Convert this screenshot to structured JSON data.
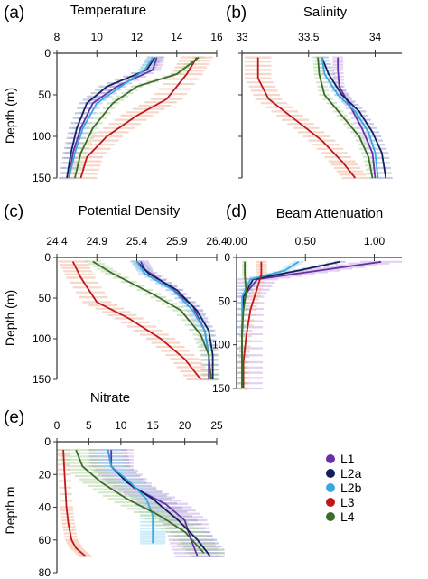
{
  "colors": {
    "L1": "#6a2fa8",
    "L2a": "#14205e",
    "L2b": "#3aa8e0",
    "L3": "#c0171c",
    "L4": "#3c6b2a"
  },
  "shade_colors": {
    "L1": "#c9aee6",
    "L2a": "#9aa4cc",
    "L2b": "#a8dcf2",
    "L3": "#f2b8a0",
    "L4": "#b5d6a0"
  },
  "legend": [
    "L1",
    "L2a",
    "L2b",
    "L3",
    "L4"
  ],
  "chart_data": [
    {
      "type": "line",
      "panel": "a",
      "letter": "(a)",
      "title": "Temperature",
      "ylabel": "Depth (m)",
      "xlim": [
        8,
        16
      ],
      "ylim": [
        0,
        150
      ],
      "xticks": [
        8,
        10,
        12,
        14,
        16
      ],
      "yticks": [
        0,
        50,
        100,
        150
      ],
      "show_ylabel_ticks": true,
      "series": [
        {
          "name": "L1",
          "x": [
            13.0,
            12.8,
            11.0,
            9.8,
            9.2,
            8.8,
            8.6
          ],
          "y": [
            5,
            20,
            40,
            60,
            90,
            120,
            150
          ]
        },
        {
          "name": "L2a",
          "x": [
            12.9,
            12.5,
            10.5,
            9.5,
            9.0,
            8.7,
            8.5
          ],
          "y": [
            5,
            20,
            40,
            60,
            90,
            120,
            150
          ]
        },
        {
          "name": "L2b",
          "x": [
            12.8,
            12.4,
            11.2,
            10.0,
            9.3,
            8.9,
            8.6
          ],
          "y": [
            5,
            20,
            40,
            60,
            90,
            120,
            150
          ]
        },
        {
          "name": "L3",
          "x": [
            15.0,
            14.5,
            13.5,
            12.0,
            10.5,
            9.5,
            9.2
          ],
          "y": [
            5,
            25,
            55,
            75,
            100,
            125,
            150
          ]
        },
        {
          "name": "L4",
          "x": [
            15.1,
            14.0,
            12.0,
            10.8,
            9.8,
            9.2,
            8.9
          ],
          "y": [
            5,
            25,
            40,
            60,
            90,
            120,
            150
          ]
        }
      ],
      "spread": [
        0.4,
        0.4,
        0.3,
        0.8,
        0.3
      ]
    },
    {
      "type": "line",
      "panel": "b",
      "letter": "(b)",
      "title": "Salinity",
      "xlim": [
        33,
        34.2
      ],
      "ylim": [
        0,
        150
      ],
      "xticks": [
        33,
        33.5,
        34
      ],
      "xtick_labels": [
        "33",
        "33.5",
        "34"
      ],
      "yticks": [
        0,
        50,
        100,
        150
      ],
      "show_ylabel_ticks": false,
      "series": [
        {
          "name": "L1",
          "x": [
            33.72,
            33.72,
            33.73,
            33.8,
            33.9,
            33.98,
            34.0
          ],
          "y": [
            5,
            20,
            40,
            60,
            90,
            120,
            150
          ]
        },
        {
          "name": "L2a",
          "x": [
            33.6,
            33.65,
            33.75,
            33.88,
            33.98,
            34.05,
            34.08
          ],
          "y": [
            5,
            25,
            50,
            70,
            95,
            120,
            150
          ]
        },
        {
          "name": "L2b",
          "x": [
            33.6,
            33.62,
            33.72,
            33.85,
            33.95,
            34.0,
            34.02
          ],
          "y": [
            5,
            25,
            50,
            70,
            95,
            120,
            150
          ]
        },
        {
          "name": "L3",
          "x": [
            33.12,
            33.12,
            33.2,
            33.4,
            33.6,
            33.75,
            33.85
          ],
          "y": [
            5,
            30,
            55,
            80,
            105,
            130,
            150
          ]
        },
        {
          "name": "L4",
          "x": [
            33.57,
            33.58,
            33.62,
            33.75,
            33.88,
            33.95,
            33.98
          ],
          "y": [
            5,
            25,
            50,
            75,
            100,
            125,
            150
          ]
        }
      ],
      "spread": [
        0.04,
        0.05,
        0.03,
        0.1,
        0.04
      ]
    },
    {
      "type": "line",
      "panel": "c",
      "letter": "(c)",
      "title": "Potential Density",
      "ylabel": "Depth (m)",
      "xlim": [
        24.4,
        26.4
      ],
      "ylim": [
        0,
        150
      ],
      "xticks": [
        24.4,
        24.9,
        25.4,
        25.9,
        26.4
      ],
      "xtick_labels": [
        "24.4",
        "24.9",
        "25.4",
        "25.9",
        "26.4"
      ],
      "yticks": [
        0,
        50,
        100,
        150
      ],
      "show_ylabel_ticks": true,
      "series": [
        {
          "name": "L1",
          "x": [
            25.45,
            25.5,
            25.8,
            26.1,
            26.25,
            26.3,
            26.3
          ],
          "y": [
            5,
            15,
            35,
            60,
            90,
            120,
            150
          ]
        },
        {
          "name": "L2a",
          "x": [
            25.4,
            25.55,
            25.9,
            26.15,
            26.3,
            26.35,
            26.35
          ],
          "y": [
            5,
            20,
            40,
            65,
            90,
            120,
            150
          ]
        },
        {
          "name": "L2b",
          "x": [
            25.4,
            25.5,
            25.85,
            26.1,
            26.25,
            26.3,
            26.32
          ],
          "y": [
            5,
            20,
            40,
            65,
            90,
            120,
            150
          ]
        },
        {
          "name": "L3",
          "x": [
            24.6,
            24.7,
            24.9,
            25.3,
            25.7,
            26.0,
            26.2
          ],
          "y": [
            5,
            25,
            55,
            75,
            100,
            125,
            150
          ]
        },
        {
          "name": "L4",
          "x": [
            24.85,
            25.1,
            25.6,
            25.95,
            26.2,
            26.3,
            26.33
          ],
          "y": [
            5,
            20,
            45,
            65,
            95,
            120,
            150
          ]
        }
      ],
      "spread": [
        0.1,
        0.08,
        0.08,
        0.18,
        0.1
      ]
    },
    {
      "type": "line",
      "panel": "d",
      "letter": "(d)",
      "title": "Beam Attenuation",
      "xlim": [
        0,
        1.2
      ],
      "ylim": [
        0,
        150
      ],
      "xticks": [
        0,
        0.5,
        1.0
      ],
      "xtick_labels": [
        "0.00",
        "0.50",
        "1.00"
      ],
      "yticks": [
        0,
        50,
        100,
        150
      ],
      "show_ylabel_ticks": true,
      "series": [
        {
          "name": "L1",
          "x": [
            1.05,
            0.6,
            0.15,
            0.05,
            0.04,
            0.04,
            0.04
          ],
          "y": [
            5,
            15,
            25,
            45,
            80,
            120,
            150
          ]
        },
        {
          "name": "L2a",
          "x": [
            0.75,
            0.45,
            0.12,
            0.05,
            0.04,
            0.04,
            0.04
          ],
          "y": [
            5,
            15,
            25,
            45,
            80,
            120,
            150
          ]
        },
        {
          "name": "L2b",
          "x": [
            0.45,
            0.35,
            0.1,
            0.04,
            0.04,
            0.04,
            0.04
          ],
          "y": [
            5,
            15,
            25,
            45,
            80,
            120,
            150
          ]
        },
        {
          "name": "L3",
          "x": [
            0.18,
            0.18,
            0.14,
            0.1,
            0.07,
            0.05,
            0.05
          ],
          "y": [
            5,
            20,
            40,
            60,
            90,
            120,
            150
          ]
        },
        {
          "name": "L4",
          "x": [
            0.06,
            0.06,
            0.07,
            0.05,
            0.04,
            0.04,
            0.04
          ],
          "y": [
            5,
            20,
            40,
            60,
            90,
            120,
            150
          ]
        }
      ],
      "spread": [
        0.15,
        0.04,
        0.04,
        0.04,
        0.02
      ]
    },
    {
      "type": "line",
      "panel": "e",
      "letter": "(e)",
      "title": "Nitrate",
      "ylabel": "Depth m",
      "xlim": [
        0,
        25
      ],
      "ylim": [
        0,
        80
      ],
      "xticks": [
        0,
        5,
        10,
        15,
        20,
        25
      ],
      "yticks": [
        0,
        20,
        40,
        60,
        80
      ],
      "show_ylabel_ticks": true,
      "series": [
        {
          "name": "L1",
          "x": [
            8.5,
            8.5,
            12,
            17,
            20,
            21,
            22
          ],
          "y": [
            5,
            15,
            28,
            38,
            48,
            60,
            70
          ]
        },
        {
          "name": "L2a",
          "x": [
            8,
            8.5,
            11,
            15,
            19,
            22,
            24
          ],
          "y": [
            5,
            15,
            25,
            35,
            48,
            60,
            70
          ]
        },
        {
          "name": "L2b",
          "x": [
            8,
            8.5,
            11.5,
            14,
            15,
            15,
            15
          ],
          "y": [
            5,
            15,
            25,
            35,
            45,
            55,
            62
          ]
        },
        {
          "name": "L3",
          "x": [
            1,
            1.2,
            1.5,
            1.8,
            2.3,
            3.0,
            4.5
          ],
          "y": [
            5,
            20,
            40,
            50,
            60,
            65,
            70
          ]
        },
        {
          "name": "L4",
          "x": [
            3,
            4,
            7,
            11,
            16,
            20,
            23
          ],
          "y": [
            5,
            15,
            25,
            35,
            45,
            55,
            68
          ]
        }
      ],
      "spread": [
        3.5,
        3,
        2,
        1,
        3
      ]
    }
  ]
}
